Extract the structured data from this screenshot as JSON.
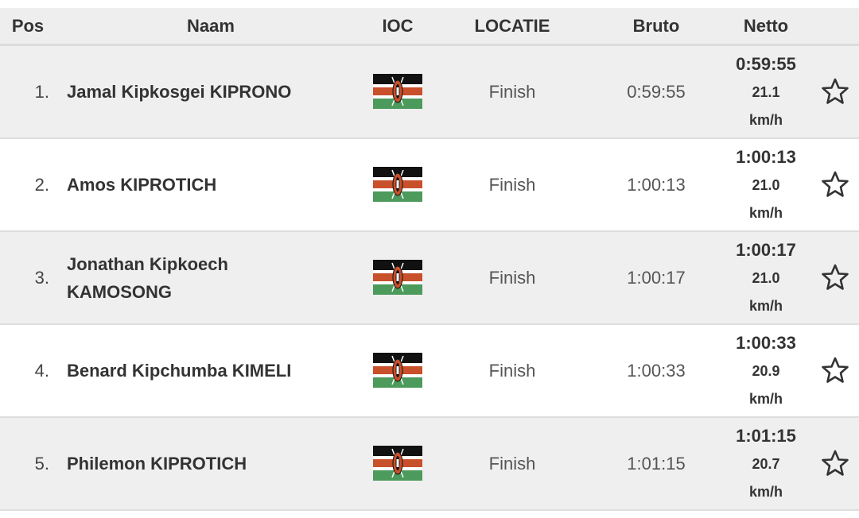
{
  "table": {
    "header": [
      "Pos",
      "Naam",
      "IOC",
      "LOCATIE",
      "Bruto",
      "Netto"
    ],
    "rows": [
      [
        "1.",
        "Jamal Kipkosgei KIPRONO",
        "Finish",
        "0:59:55",
        "0:59:55",
        "21.1 km/h"
      ],
      [
        "2.",
        "Amos KIPROTICH",
        "Finish",
        "1:00:13",
        "1:00:13",
        "21.0 km/h"
      ],
      [
        "3.",
        "Jonathan Kipkoech KAMOSONG",
        "Finish",
        "1:00:17",
        "1:00:17",
        "21.0 km/h"
      ],
      [
        "4.",
        "Benard Kipchumba KIMELI",
        "Finish",
        "1:00:33",
        "1:00:33",
        "20.9 km/h"
      ],
      [
        "5.",
        "Philemon KIPROTICH",
        "Finish",
        "1:01:15",
        "1:01:15",
        "20.7 km/h"
      ]
    ]
  }
}
